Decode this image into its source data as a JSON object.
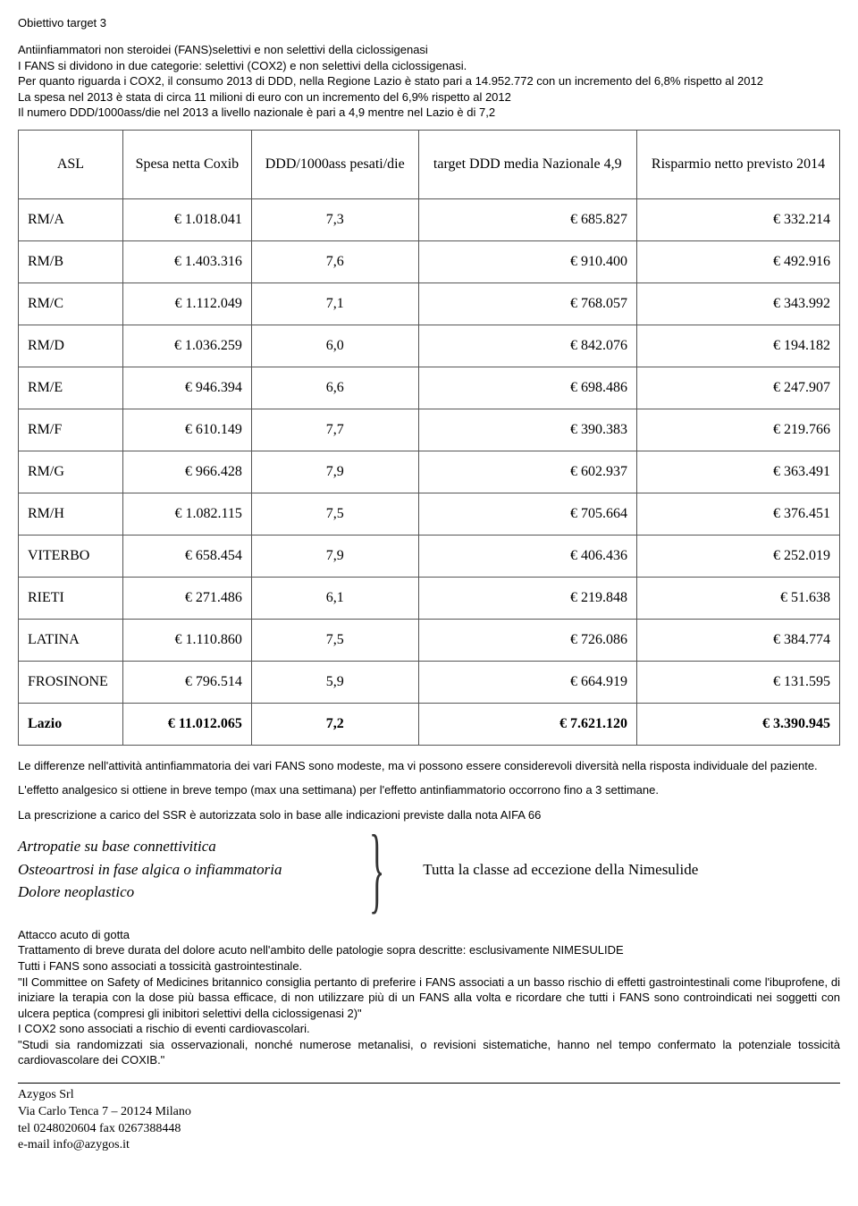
{
  "header": {
    "title": "Obiettivo target 3"
  },
  "intro": {
    "p1": "Antiinfiammatori non steroidei (FANS)selettivi e non selettivi della ciclossigenasi",
    "p2": "I FANS si dividono in due categorie: selettivi (COX2) e non selettivi della ciclossigenasi.",
    "p3": "Per quanto riguarda i COX2, il consumo 2013 di DDD, nella Regione Lazio è stato pari a 14.952.772 con un incremento del 6,8% rispetto al 2012",
    "p4": "La spesa nel 2013 è stata di circa 11 milioni di euro con un incremento del 6,9% rispetto al 2012",
    "p5": "Il numero DDD/1000ass/die nel 2013 a livello nazionale è pari a 4,9 mentre nel Lazio è di 7,2"
  },
  "table": {
    "columns": [
      "ASL",
      "Spesa netta Coxib",
      "DDD/1000ass pesati/die",
      "target DDD media Nazionale  4,9",
      "Risparmio netto previsto 2014"
    ],
    "rows": [
      {
        "asl": "RM/A",
        "spesa": "€ 1.018.041",
        "ddd": "7,3",
        "target": "€ 685.827",
        "risp": "€ 332.214"
      },
      {
        "asl": "RM/B",
        "spesa": "€ 1.403.316",
        "ddd": "7,6",
        "target": "€ 910.400",
        "risp": "€ 492.916"
      },
      {
        "asl": "RM/C",
        "spesa": "€ 1.112.049",
        "ddd": "7,1",
        "target": "€ 768.057",
        "risp": "€ 343.992"
      },
      {
        "asl": "RM/D",
        "spesa": "€ 1.036.259",
        "ddd": "6,0",
        "target": "€ 842.076",
        "risp": "€ 194.182"
      },
      {
        "asl": "RM/E",
        "spesa": "€ 946.394",
        "ddd": "6,6",
        "target": "€ 698.486",
        "risp": "€ 247.907"
      },
      {
        "asl": "RM/F",
        "spesa": "€ 610.149",
        "ddd": "7,7",
        "target": "€ 390.383",
        "risp": "€ 219.766"
      },
      {
        "asl": "RM/G",
        "spesa": "€ 966.428",
        "ddd": "7,9",
        "target": "€ 602.937",
        "risp": "€ 363.491"
      },
      {
        "asl": "RM/H",
        "spesa": "€ 1.082.115",
        "ddd": "7,5",
        "target": "€ 705.664",
        "risp": "€ 376.451"
      },
      {
        "asl": "VITERBO",
        "spesa": "€ 658.454",
        "ddd": "7,9",
        "target": "€ 406.436",
        "risp": "€ 252.019"
      },
      {
        "asl": "RIETI",
        "spesa": "€ 271.486",
        "ddd": "6,1",
        "target": "€ 219.848",
        "risp": "€ 51.638"
      },
      {
        "asl": "LATINA",
        "spesa": "€ 1.110.860",
        "ddd": "7,5",
        "target": "€ 726.086",
        "risp": "€ 384.774"
      },
      {
        "asl": "FROSINONE",
        "spesa": "€ 796.514",
        "ddd": "5,9",
        "target": "€ 664.919",
        "risp": "€ 131.595"
      }
    ],
    "total": {
      "asl": "Lazio",
      "spesa": "€ 11.012.065",
      "ddd": "7,2",
      "target": "€ 7.621.120",
      "risp": "€ 3.390.945"
    }
  },
  "mid": {
    "p1": "Le differenze nell'attività antinfiammatoria dei vari FANS sono modeste, ma vi possono essere considerevoli diversità nella risposta individuale del paziente.",
    "p2": "L'effetto analgesico si ottiene in breve tempo (max una settimana) per l'effetto antinfiammatorio occorrono fino a 3 settimane.",
    "p3": "La prescrizione a carico del SSR è autorizzata solo in base alle indicazioni previste dalla nota AIFA 66"
  },
  "indications": {
    "left": {
      "l1": "Artropatie su base connettivitica",
      "l2": "Osteoartrosi in fase algica o infiammatoria",
      "l3": "Dolore neoplastico"
    },
    "right": "Tutta la classe ad eccezione della Nimesulide"
  },
  "lower": {
    "p1": "Attacco acuto di gotta",
    "p2": "Trattamento di breve durata del dolore acuto nell'ambito delle patologie sopra descritte: esclusivamente NIMESULIDE",
    "p3": "Tutti i FANS sono associati a tossicità gastrointestinale.",
    "p4": "\"Il Committee on Safety of Medicines britannico consiglia pertanto di preferire i FANS associati a un basso rischio di effetti gastrointestinali come l'ibuprofene, di iniziare la terapia con la dose più bassa efficace, di non utilizzare più di un FANS alla volta e ricordare che tutti i FANS sono controindicati nei soggetti con ulcera peptica (compresi gli inibitori selettivi della ciclossigenasi 2)\"",
    "p5": "I COX2 sono associati a rischio di eventi cardiovascolari.",
    "p6": "\"Studi sia randomizzati sia osservazionali, nonché numerose metanalisi, o revisioni sistematiche, hanno nel tempo confermato la potenziale tossicità cardiovascolare dei COXIB.\""
  },
  "footer": {
    "l1": "Azygos Srl",
    "l2": "Via Carlo Tenca 7 – 20124 Milano",
    "l3": "tel 0248020604 fax 0267388448",
    "l4": "e-mail info@azygos.it"
  }
}
